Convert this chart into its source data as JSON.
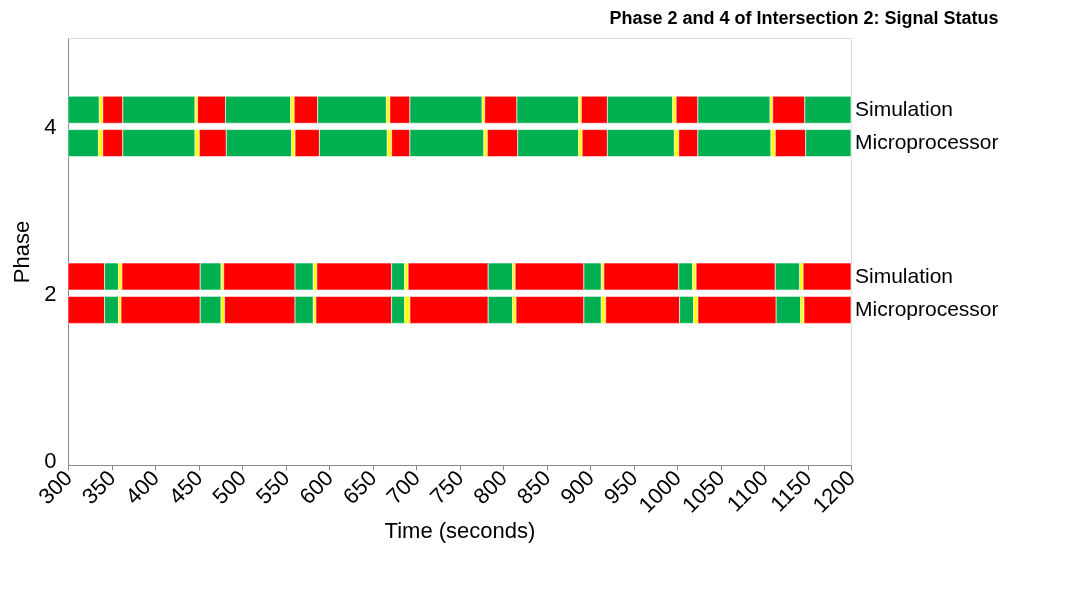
{
  "chart_data": {
    "type": "bar",
    "orientation": "horizontal",
    "title": "Phase 2 and 4 of Intersection 2: Signal Status",
    "xlabel": "Time (seconds)",
    "ylabel": "Phase",
    "xlim": [
      300,
      1200
    ],
    "xticks": [
      300,
      350,
      400,
      450,
      500,
      550,
      600,
      650,
      700,
      750,
      800,
      850,
      900,
      950,
      1000,
      1050,
      1100,
      1150,
      1200
    ],
    "ylim": [
      0,
      5
    ],
    "yticks": [
      0,
      2,
      4
    ],
    "grid": false,
    "annotations": [
      "Microprocessor",
      "Simulation",
      "Microprocessor",
      "Simulation"
    ],
    "series": [
      {
        "x": [
          1.8,
          2.2,
          3.8,
          4.2
        ],
        "base": [
          300,
          300,
          300,
          300
        ],
        "values": [
          42,
          42,
          35,
          36
        ],
        "colors": [
          "#ff0000",
          "#ff0000",
          "#00b050",
          "#00b050"
        ]
      },
      {
        "x": [
          1.8,
          2.2,
          3.8,
          4.2
        ],
        "base": [
          342,
          342,
          335,
          336
        ],
        "values": [
          16,
          16,
          5,
          4
        ],
        "colors": [
          "#00b050",
          "#00b050",
          "#ffff00",
          "#ffff00"
        ]
      },
      {
        "x": [
          1.8,
          2.2,
          3.8,
          4.2
        ],
        "base": [
          358,
          358,
          340,
          340
        ],
        "values": [
          3,
          4,
          23,
          23
        ],
        "colors": [
          "#ffff00",
          "#ffff00",
          "#ff0000",
          "#ff0000"
        ]
      },
      {
        "x": [
          1.8,
          2.2,
          3.8,
          4.2
        ],
        "base": [
          361,
          362,
          363,
          363
        ],
        "values": [
          91,
          90,
          83,
          83
        ],
        "colors": [
          "#ff0000",
          "#ff0000",
          "#00b050",
          "#00b050"
        ]
      },
      {
        "x": [
          1.8,
          2.2,
          3.8,
          4.2
        ],
        "base": [
          452,
          452,
          446,
          446
        ],
        "values": [
          24,
          24,
          5,
          3
        ],
        "colors": [
          "#00b050",
          "#00b050",
          "#ffff00",
          "#ffff00"
        ]
      },
      {
        "x": [
          1.8,
          2.2,
          3.8,
          4.2
        ],
        "base": [
          476,
          476,
          451,
          449
        ],
        "values": [
          4,
          3,
          31,
          32
        ],
        "colors": [
          "#ffff00",
          "#ffff00",
          "#ff0000",
          "#ff0000"
        ]
      },
      {
        "x": [
          1.8,
          2.2,
          3.8,
          4.2
        ],
        "base": [
          480,
          479,
          482,
          481
        ],
        "values": [
          81,
          82,
          75,
          75
        ],
        "colors": [
          "#ff0000",
          "#ff0000",
          "#00b050",
          "#00b050"
        ]
      },
      {
        "x": [
          1.8,
          2.2,
          3.8,
          4.2
        ],
        "base": [
          561,
          561,
          557,
          556
        ],
        "values": [
          21,
          21,
          4,
          4
        ],
        "colors": [
          "#00b050",
          "#00b050",
          "#ffff00",
          "#ffff00"
        ]
      },
      {
        "x": [
          1.8,
          2.2,
          3.8,
          4.2
        ],
        "base": [
          582,
          582,
          561,
          560
        ],
        "values": [
          3,
          4,
          28,
          27
        ],
        "colors": [
          "#ffff00",
          "#ffff00",
          "#ff0000",
          "#ff0000"
        ]
      },
      {
        "x": [
          1.8,
          2.2,
          3.8,
          4.2
        ],
        "base": [
          585,
          586,
          589,
          587
        ],
        "values": [
          87,
          86,
          78,
          79
        ],
        "colors": [
          "#ff0000",
          "#ff0000",
          "#00b050",
          "#00b050"
        ]
      },
      {
        "x": [
          1.8,
          2.2,
          3.8,
          4.2
        ],
        "base": [
          672,
          672,
          667,
          666
        ],
        "values": [
          15,
          15,
          5,
          4
        ],
        "colors": [
          "#00b050",
          "#00b050",
          "#ffff00",
          "#ffff00"
        ]
      },
      {
        "x": [
          1.8,
          2.2,
          3.8,
          4.2
        ],
        "base": [
          687,
          687,
          672,
          670
        ],
        "values": [
          6,
          4,
          21,
          23
        ],
        "colors": [
          "#ffff00",
          "#ffff00",
          "#ff0000",
          "#ff0000"
        ]
      },
      {
        "x": [
          1.8,
          2.2,
          3.8,
          4.2
        ],
        "base": [
          693,
          691,
          693,
          693
        ],
        "values": [
          90,
          92,
          85,
          83
        ],
        "colors": [
          "#ff0000",
          "#ff0000",
          "#00b050",
          "#00b050"
        ]
      },
      {
        "x": [
          1.8,
          2.2,
          3.8,
          4.2
        ],
        "base": [
          783,
          783,
          778,
          776
        ],
        "values": [
          28,
          28,
          4,
          3
        ],
        "colors": [
          "#00b050",
          "#00b050",
          "#ffff00",
          "#ffff00"
        ]
      },
      {
        "x": [
          1.8,
          2.2,
          3.8,
          4.2
        ],
        "base": [
          811,
          811,
          782,
          779
        ],
        "values": [
          4,
          3,
          35,
          37
        ],
        "colors": [
          "#ffff00",
          "#ffff00",
          "#ff0000",
          "#ff0000"
        ]
      },
      {
        "x": [
          1.8,
          2.2,
          3.8,
          4.2
        ],
        "base": [
          815,
          814,
          817,
          816
        ],
        "values": [
          78,
          79,
          70,
          71
        ],
        "colors": [
          "#ff0000",
          "#ff0000",
          "#00b050",
          "#00b050"
        ]
      },
      {
        "x": [
          1.8,
          2.2,
          3.8,
          4.2
        ],
        "base": [
          893,
          893,
          887,
          887
        ],
        "values": [
          20,
          20,
          4,
          3
        ],
        "colors": [
          "#00b050",
          "#00b050",
          "#ffff00",
          "#ffff00"
        ]
      },
      {
        "x": [
          1.8,
          2.2,
          3.8,
          4.2
        ],
        "base": [
          913,
          913,
          891,
          890
        ],
        "values": [
          5,
          3,
          29,
          30
        ],
        "colors": [
          "#ffff00",
          "#ffff00",
          "#ff0000",
          "#ff0000"
        ]
      },
      {
        "x": [
          1.8,
          2.2,
          3.8,
          4.2
        ],
        "base": [
          918,
          916,
          920,
          920
        ],
        "values": [
          85,
          86,
          77,
          75
        ],
        "colors": [
          "#ff0000",
          "#ff0000",
          "#00b050",
          "#00b050"
        ]
      },
      {
        "x": [
          1.8,
          2.2,
          3.8,
          4.2
        ],
        "base": [
          1003,
          1002,
          997,
          995
        ],
        "values": [
          16,
          16,
          5,
          4
        ],
        "colors": [
          "#00b050",
          "#00b050",
          "#ffff00",
          "#ffff00"
        ]
      },
      {
        "x": [
          1.8,
          2.2,
          3.8,
          4.2
        ],
        "base": [
          1019,
          1018,
          1002,
          999
        ],
        "values": [
          5,
          4,
          22,
          25
        ],
        "colors": [
          "#ffff00",
          "#ffff00",
          "#ff0000",
          "#ff0000"
        ]
      },
      {
        "x": [
          1.8,
          2.2,
          3.8,
          4.2
        ],
        "base": [
          1024,
          1022,
          1024,
          1024
        ],
        "values": [
          90,
          91,
          84,
          83
        ],
        "colors": [
          "#ff0000",
          "#ff0000",
          "#00b050",
          "#00b050"
        ]
      },
      {
        "x": [
          1.8,
          2.2,
          3.8,
          4.2
        ],
        "base": [
          1114,
          1113,
          1108,
          1107
        ],
        "values": [
          28,
          28,
          5,
          3
        ],
        "colors": [
          "#00b050",
          "#00b050",
          "#ffff00",
          "#ffff00"
        ]
      },
      {
        "x": [
          1.8,
          2.2,
          3.8,
          4.2
        ],
        "base": [
          1142,
          1141,
          1113,
          1110
        ],
        "values": [
          4,
          4,
          35,
          37
        ],
        "colors": [
          "#ffff00",
          "#ffff00",
          "#ff0000",
          "#ff0000"
        ]
      },
      {
        "x": [
          1.8,
          2.2,
          3.8,
          4.2
        ],
        "base": [
          1146,
          1145,
          1148,
          1147
        ],
        "values": [
          54,
          55,
          52,
          53
        ],
        "colors": [
          "#ff0000",
          "#ff0000",
          "#00b050",
          "#00b050"
        ]
      }
    ]
  }
}
